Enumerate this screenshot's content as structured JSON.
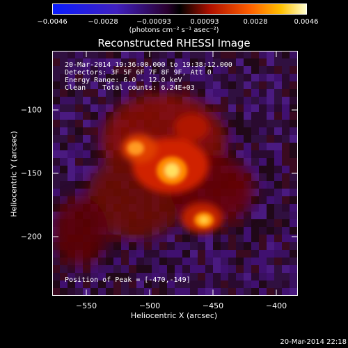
{
  "colorbar": {
    "tick_labels": [
      "−0.0046",
      "−0.0028",
      "−0.00093",
      "0.00093",
      "0.0028",
      "0.0046"
    ],
    "units_text": "(photons cm⁻² s⁻¹ asec⁻²)"
  },
  "title": "Reconstructed RHESSI Image",
  "overlay": {
    "line1": "20-Mar-2014 19:36:00.000 to 19:38:12.000",
    "line2": "Detectors: 3F 5F 6F 7F 8F 9F, Att 0",
    "line3": "Energy Range: 6.0 - 12.0 keV",
    "line4": "Clean    Total counts: 6.24E+03",
    "peak": "Position of Peak = [-470,-149]"
  },
  "axes": {
    "x_title": "Heliocentric X (arcsec)",
    "y_title": "Heliocentric Y (arcsec)",
    "x_ticks": [
      "−550",
      "−500",
      "−450",
      "−400"
    ],
    "y_ticks": [
      "−100",
      "−150",
      "−200"
    ]
  },
  "footer": "20-Mar-2014 22:18"
}
